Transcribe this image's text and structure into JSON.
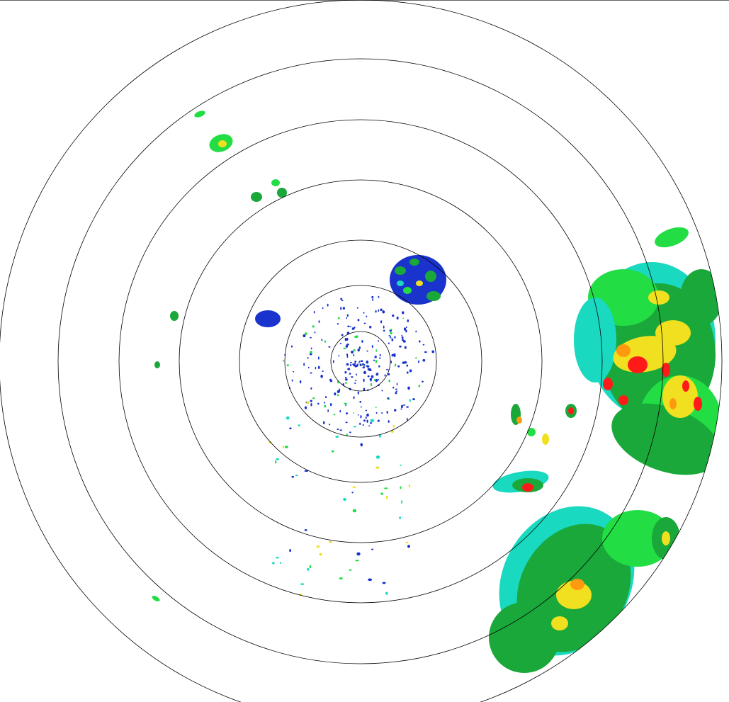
{
  "radar": {
    "range_ring_count": 7,
    "ring_color": "#000000",
    "background": "#ffffff",
    "reflectivity_palette": {
      "very_light": "#1a33cc",
      "light": "#19d9c0",
      "light_moderate": "#22dd44",
      "moderate": "#1aa83a",
      "moderate_heavy": "#f0e020",
      "heavy": "#ff9a10",
      "very_heavy": "#ff1a1a"
    }
  }
}
